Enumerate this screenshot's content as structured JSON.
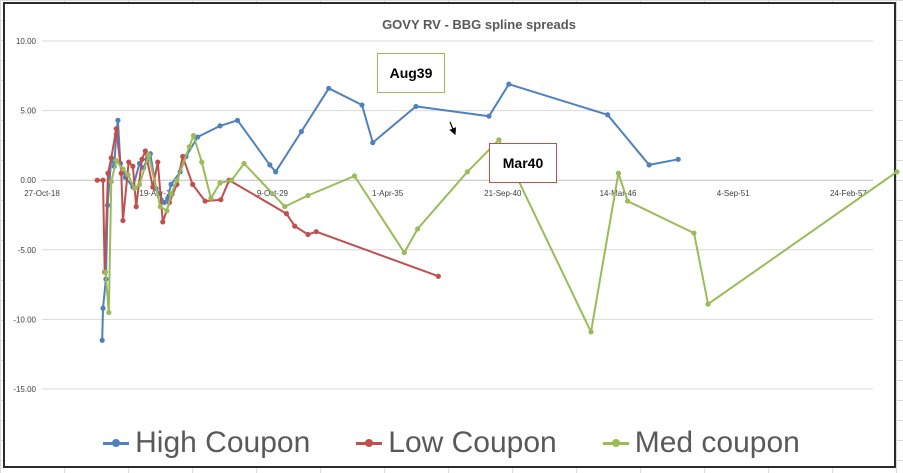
{
  "chart_data": {
    "type": "line",
    "title": "GOVY RV - BBG spline spreads",
    "xlabel": "",
    "ylabel": "",
    "ylim": [
      -15,
      10
    ],
    "xlim": [
      0,
      1
    ],
    "y_ticks": [
      10,
      5,
      0,
      -5,
      -10,
      -15
    ],
    "y_tick_labels": [
      "10.00",
      "5.00",
      "0.00",
      "-5.00",
      "-10.00",
      "-15.00"
    ],
    "x_tick_labels": [
      {
        "pos": 0.0,
        "label": "27-Oct-18"
      },
      {
        "pos": 0.1388,
        "label": "19-Apr-24"
      },
      {
        "pos": 0.2776,
        "label": "9-Oct-29"
      },
      {
        "pos": 0.4164,
        "label": "1-Apr-35"
      },
      {
        "pos": 0.5552,
        "label": "21-Sep-40"
      },
      {
        "pos": 0.694,
        "label": "14-Mar-46"
      },
      {
        "pos": 0.8328,
        "label": "4-Sep-51"
      },
      {
        "pos": 0.9716,
        "label": "24-Feb-57"
      }
    ],
    "grid": "horizontal",
    "legend": "bottom",
    "series": [
      {
        "name": "High Coupon",
        "color": "#4f81bd",
        "points": [
          [
            0.0725,
            -11.5
          ],
          [
            0.0735,
            -9.2
          ],
          [
            0.077,
            -7.1
          ],
          [
            0.079,
            -1.8
          ],
          [
            0.0835,
            1.6
          ],
          [
            0.087,
            1.0
          ],
          [
            0.0895,
            3.3
          ],
          [
            0.0915,
            4.3
          ],
          [
            0.0945,
            1.2
          ],
          [
            0.1005,
            0.2
          ],
          [
            0.1095,
            -0.5
          ],
          [
            0.1175,
            1.2
          ],
          [
            0.1225,
            0.9
          ],
          [
            0.1265,
            1.5
          ],
          [
            0.1305,
            1.9
          ],
          [
            0.1375,
            -0.6
          ],
          [
            0.1475,
            -1.6
          ],
          [
            0.1515,
            -1.3
          ],
          [
            0.1555,
            -0.3
          ],
          [
            0.1665,
            0.6
          ],
          [
            0.1735,
            1.7
          ],
          [
            0.1875,
            3.1
          ],
          [
            0.2145,
            3.9
          ],
          [
            0.2355,
            4.3
          ],
          [
            0.2745,
            1.1
          ],
          [
            0.2815,
            0.6
          ],
          [
            0.3125,
            3.5
          ],
          [
            0.3455,
            6.6
          ],
          [
            0.3855,
            5.4
          ],
          [
            0.3985,
            2.7
          ],
          [
            0.4505,
            5.3
          ],
          [
            0.5385,
            4.6
          ],
          [
            0.5625,
            6.9
          ],
          [
            0.6815,
            4.7
          ],
          [
            0.7315,
            1.1
          ],
          [
            0.7665,
            1.5
          ]
        ]
      },
      {
        "name": "Low Coupon",
        "color": "#c0504d",
        "points": [
          [
            0.0665,
            0.0
          ],
          [
            0.0735,
            0.0
          ],
          [
            0.0755,
            -6.6
          ],
          [
            0.0795,
            0.5
          ],
          [
            0.0835,
            1.6
          ],
          [
            0.0895,
            3.7
          ],
          [
            0.0955,
            0.5
          ],
          [
            0.0975,
            -2.9
          ],
          [
            0.1045,
            1.3
          ],
          [
            0.1095,
            1.0
          ],
          [
            0.1135,
            -1.9
          ],
          [
            0.1205,
            1.5
          ],
          [
            0.1245,
            2.1
          ],
          [
            0.1335,
            -0.5
          ],
          [
            0.1395,
            1.3
          ],
          [
            0.1455,
            -3.0
          ],
          [
            0.1535,
            -1.6
          ],
          [
            0.1625,
            -0.3
          ],
          [
            0.1695,
            1.7
          ],
          [
            0.1815,
            -0.3
          ],
          [
            0.1965,
            -1.5
          ],
          [
            0.2155,
            -1.4
          ],
          [
            0.2255,
            0.0
          ],
          [
            0.2945,
            -2.4
          ],
          [
            0.3045,
            -3.3
          ],
          [
            0.3205,
            -3.9
          ],
          [
            0.3305,
            -3.7
          ],
          [
            0.4775,
            -6.9
          ]
        ]
      },
      {
        "name": "Med coupon",
        "color": "#9bbb59",
        "points": [
          [
            0.0765,
            -6.6
          ],
          [
            0.0805,
            -9.5
          ],
          [
            0.0835,
            -0.1
          ],
          [
            0.0895,
            1.4
          ],
          [
            0.0975,
            0.8
          ],
          [
            0.1035,
            0.4
          ],
          [
            0.1115,
            -0.6
          ],
          [
            0.1175,
            -0.3
          ],
          [
            0.1285,
            1.8
          ],
          [
            0.1425,
            -1.9
          ],
          [
            0.1505,
            -2.2
          ],
          [
            0.1555,
            -1.0
          ],
          [
            0.1625,
            0.0
          ],
          [
            0.1775,
            2.4
          ],
          [
            0.1825,
            3.2
          ],
          [
            0.1925,
            1.3
          ],
          [
            0.2035,
            -1.3
          ],
          [
            0.2145,
            -0.2
          ],
          [
            0.2285,
            0.0
          ],
          [
            0.2435,
            1.2
          ],
          [
            0.2925,
            -1.9
          ],
          [
            0.3205,
            -1.1
          ],
          [
            0.3765,
            0.3
          ],
          [
            0.4365,
            -5.2
          ],
          [
            0.4525,
            -3.5
          ],
          [
            0.5125,
            0.6
          ],
          [
            0.5505,
            2.9
          ],
          [
            0.6615,
            -10.9
          ],
          [
            0.6945,
            0.5
          ],
          [
            0.7055,
            -1.5
          ],
          [
            0.7855,
            -3.8
          ],
          [
            0.8025,
            -8.9
          ],
          [
            1.03,
            0.6
          ]
        ]
      }
    ],
    "annotations": [
      {
        "label": "Aug39",
        "target_series": "Med coupon",
        "target_point": [
          0.5505,
          2.9
        ]
      },
      {
        "label": "Mar40",
        "target_series": "Low Coupon"
      }
    ]
  }
}
